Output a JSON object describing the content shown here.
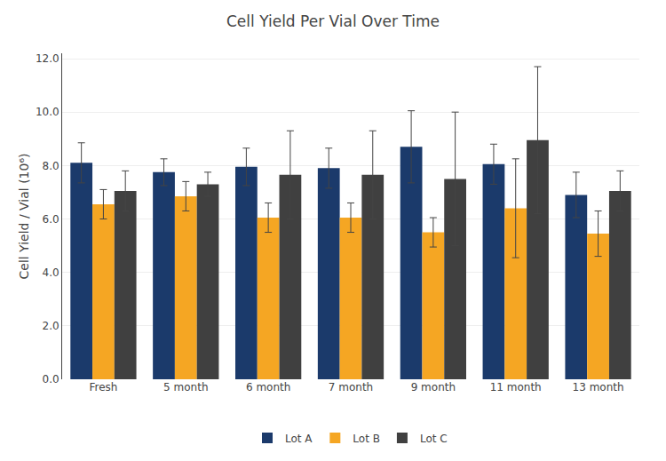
{
  "chart_data": {
    "type": "bar",
    "title": "Cell Yield Per Vial Over Time",
    "ylabel": "Cell Yield / Vial (10⁶)",
    "categories": [
      "Fresh",
      "5 month",
      "6 month",
      "7 month",
      "9 month",
      "11 month",
      "13 month"
    ],
    "series": [
      {
        "name": "Lot A",
        "color": "#1B3A6B",
        "values": [
          8.1,
          7.75,
          7.95,
          7.9,
          8.7,
          8.05,
          6.9
        ],
        "errors": [
          0.75,
          0.5,
          0.7,
          0.75,
          1.35,
          0.75,
          0.85
        ]
      },
      {
        "name": "Lot B",
        "color": "#F5A623",
        "values": [
          6.55,
          6.85,
          6.05,
          6.05,
          5.5,
          6.4,
          5.45
        ],
        "errors": [
          0.55,
          0.55,
          0.55,
          0.55,
          0.55,
          1.85,
          0.85
        ]
      },
      {
        "name": "Lot C",
        "color": "#404040",
        "values": [
          7.05,
          7.3,
          7.65,
          7.65,
          7.5,
          8.95,
          7.05
        ],
        "errors": [
          0.75,
          0.45,
          1.65,
          1.65,
          2.5,
          2.75,
          0.75
        ]
      }
    ],
    "ylim": [
      0,
      12.2
    ],
    "yticks": [
      {
        "value": 0,
        "label": "0.0"
      },
      {
        "value": 2,
        "label": "2.0"
      },
      {
        "value": 4,
        "label": "4.0"
      },
      {
        "value": 6,
        "label": "6.0"
      },
      {
        "value": 8,
        "label": "8.0"
      },
      {
        "value": 10,
        "label": "10.0"
      },
      {
        "value": 12,
        "label": "12.0"
      }
    ],
    "grid": true,
    "legend": "bottom"
  }
}
